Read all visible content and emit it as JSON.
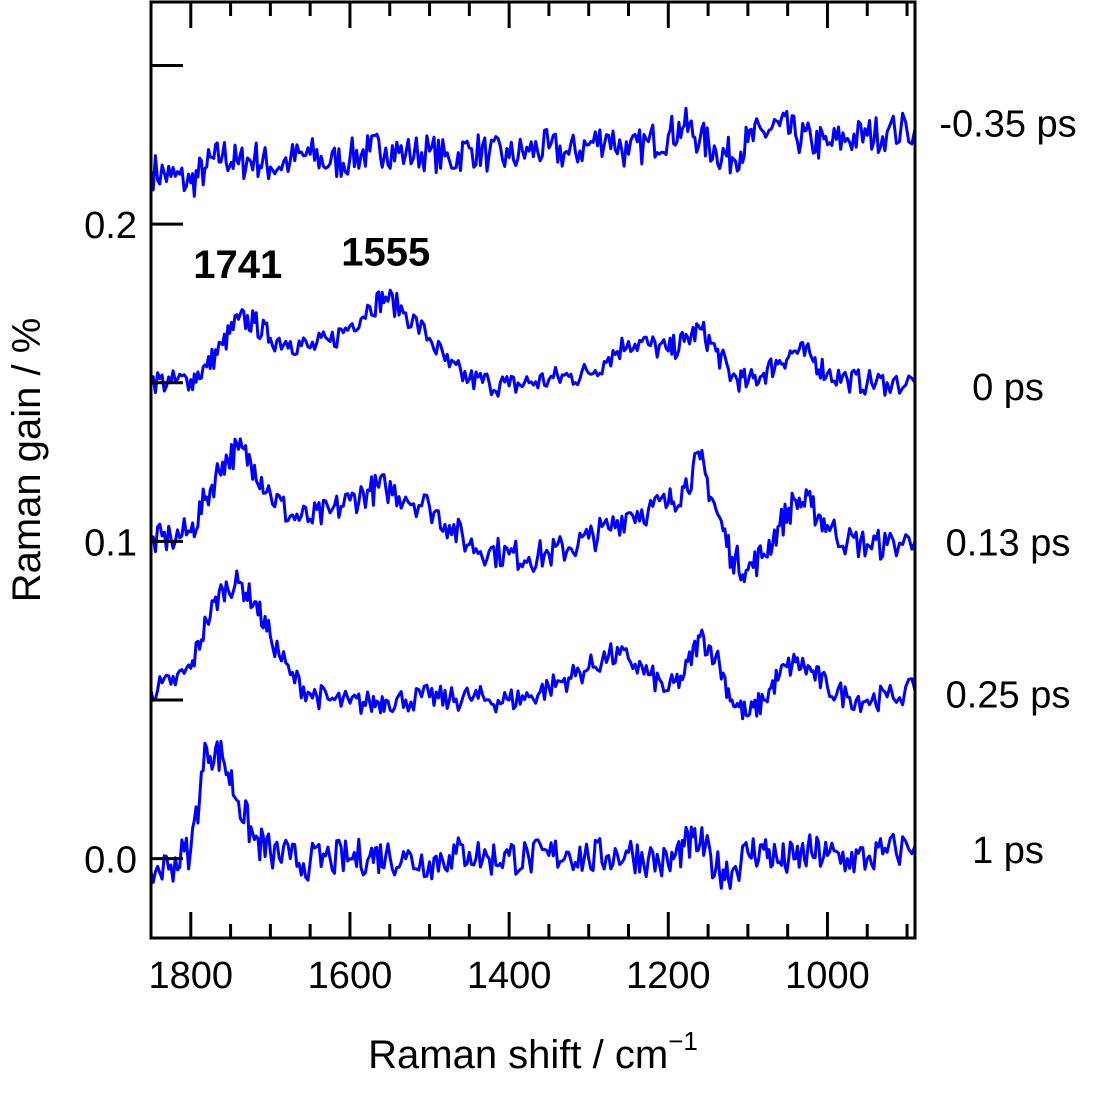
{
  "chart_data": {
    "type": "line",
    "xlabel": "Raman shift / cm",
    "xlabel_superscript": "−1",
    "ylabel": "Raman gain / %",
    "xlim": [
      1850,
      890
    ],
    "ylim": [
      -0.025,
      0.27
    ],
    "x_reversed": true,
    "x_ticks": [
      {
        "value": 1800,
        "label": "1800"
      },
      {
        "value": 1600,
        "label": "1600"
      },
      {
        "value": 1400,
        "label": "1400"
      },
      {
        "value": 1200,
        "label": "1200"
      },
      {
        "value": 1000,
        "label": "1000"
      }
    ],
    "y_ticks": [
      {
        "value": 0.0,
        "label": "0.0"
      },
      {
        "value": 0.1,
        "label": "0.1"
      },
      {
        "value": 0.2,
        "label": "0.2"
      }
    ],
    "line_color": "#0000ff",
    "grid": false,
    "x": [
      1850,
      1825,
      1800,
      1780,
      1760,
      1740,
      1720,
      1700,
      1675,
      1650,
      1625,
      1600,
      1575,
      1555,
      1530,
      1500,
      1475,
      1450,
      1425,
      1400,
      1375,
      1350,
      1325,
      1300,
      1275,
      1250,
      1225,
      1200,
      1180,
      1160,
      1140,
      1120,
      1100,
      1080,
      1060,
      1040,
      1020,
      1000,
      975,
      950,
      925,
      890
    ],
    "series": [
      {
        "label": "-0.35 ps",
        "values": [
          0.217,
          0.215,
          0.213,
          0.218,
          0.222,
          0.219,
          0.221,
          0.218,
          0.22,
          0.222,
          0.219,
          0.221,
          0.223,
          0.224,
          0.222,
          0.223,
          0.22,
          0.224,
          0.222,
          0.221,
          0.223,
          0.224,
          0.222,
          0.225,
          0.228,
          0.222,
          0.226,
          0.228,
          0.231,
          0.227,
          0.223,
          0.221,
          0.226,
          0.229,
          0.231,
          0.228,
          0.226,
          0.225,
          0.227,
          0.228,
          0.229,
          0.23
        ]
      },
      {
        "label": "0 ps",
        "values": [
          0.151,
          0.15,
          0.151,
          0.155,
          0.162,
          0.17,
          0.169,
          0.164,
          0.163,
          0.161,
          0.163,
          0.168,
          0.174,
          0.177,
          0.172,
          0.164,
          0.155,
          0.151,
          0.15,
          0.149,
          0.15,
          0.151,
          0.152,
          0.153,
          0.158,
          0.163,
          0.162,
          0.16,
          0.163,
          0.167,
          0.16,
          0.152,
          0.15,
          0.153,
          0.157,
          0.16,
          0.158,
          0.153,
          0.151,
          0.15,
          0.15,
          0.15
        ]
      },
      {
        "label": "0.13 ps",
        "values": [
          0.1,
          0.101,
          0.103,
          0.114,
          0.125,
          0.129,
          0.124,
          0.115,
          0.108,
          0.107,
          0.109,
          0.113,
          0.116,
          0.117,
          0.114,
          0.111,
          0.105,
          0.099,
          0.097,
          0.096,
          0.095,
          0.096,
          0.098,
          0.101,
          0.104,
          0.109,
          0.11,
          0.112,
          0.117,
          0.126,
          0.11,
          0.095,
          0.091,
          0.096,
          0.105,
          0.113,
          0.111,
          0.105,
          0.1,
          0.099,
          0.099,
          0.1
        ]
      },
      {
        "label": "0.25 ps",
        "values": [
          0.053,
          0.055,
          0.06,
          0.075,
          0.085,
          0.087,
          0.081,
          0.07,
          0.058,
          0.052,
          0.05,
          0.049,
          0.049,
          0.05,
          0.05,
          0.051,
          0.05,
          0.051,
          0.05,
          0.05,
          0.051,
          0.054,
          0.057,
          0.06,
          0.064,
          0.063,
          0.058,
          0.053,
          0.058,
          0.07,
          0.064,
          0.05,
          0.045,
          0.05,
          0.058,
          0.062,
          0.059,
          0.054,
          0.051,
          0.05,
          0.051,
          0.053
        ]
      },
      {
        "label": "1 ps",
        "values": [
          -0.004,
          -0.002,
          0.003,
          0.035,
          0.032,
          0.018,
          0.006,
          0.002,
          0.0,
          -0.001,
          0.0,
          0.0,
          0.001,
          0.001,
          0.0,
          -0.001,
          0.001,
          0.002,
          0.0,
          0.001,
          0.0,
          0.001,
          0.002,
          0.0,
          0.001,
          0.002,
          0.0,
          -0.002,
          0.004,
          0.005,
          -0.003,
          -0.004,
          0.002,
          0.003,
          -0.001,
          0.0,
          0.002,
          0.001,
          0.0,
          0.0,
          0.002,
          0.004
        ]
      }
    ],
    "series_label_positions_y": [
      0.232,
      0.149,
      0.1,
      0.052,
      0.003
    ],
    "peak_annotations": [
      {
        "label": "1741",
        "x": 1741,
        "y": 0.183
      },
      {
        "label": "1555",
        "x": 1555,
        "y": 0.187
      }
    ]
  }
}
